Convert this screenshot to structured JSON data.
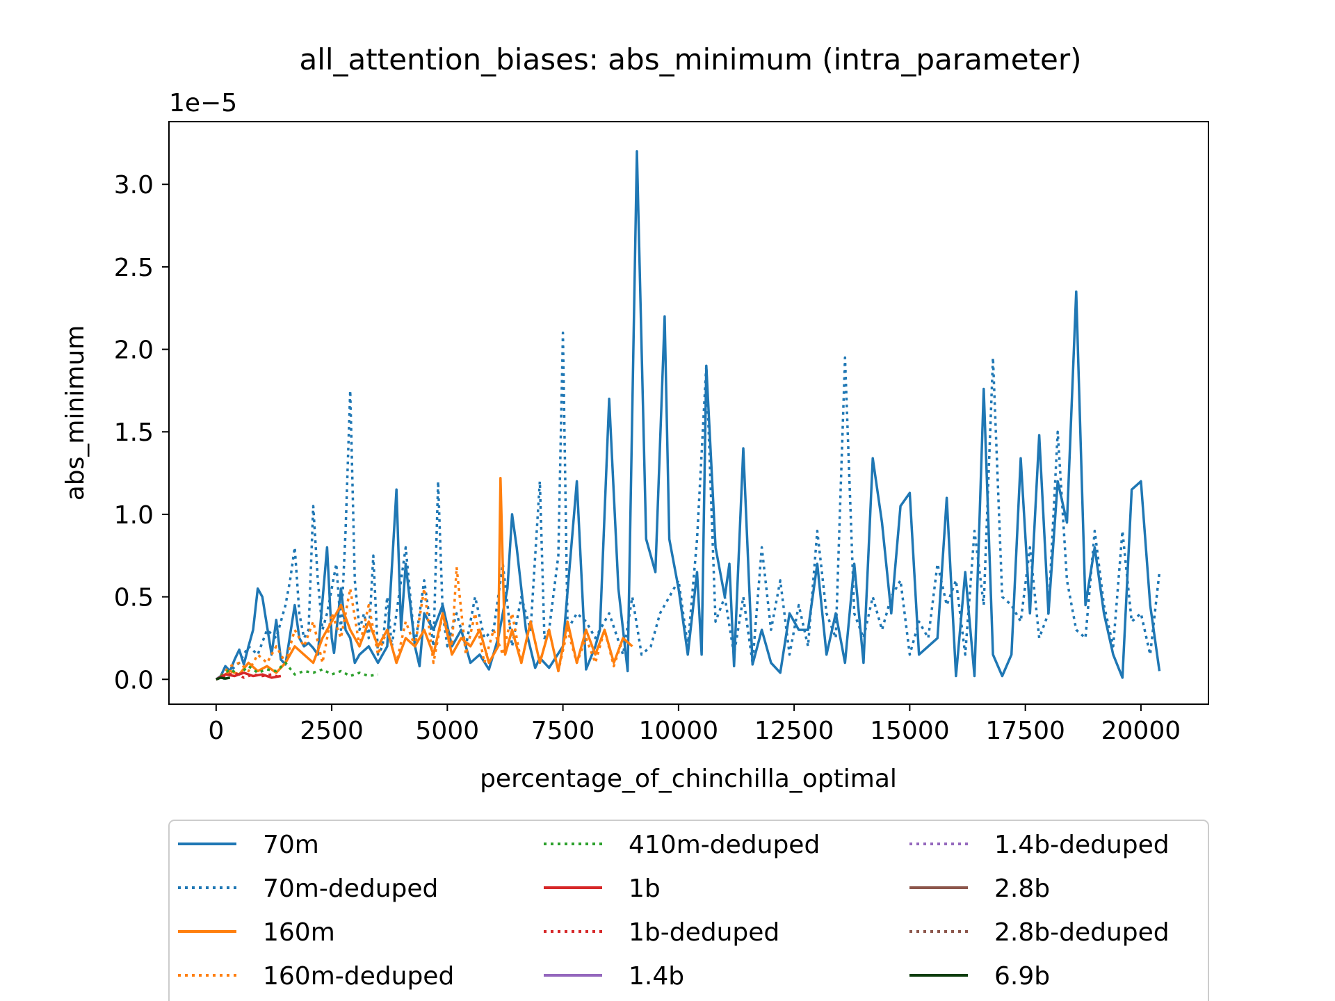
{
  "chart_data": {
    "type": "line",
    "title": "all_attention_biases: abs_minimum (intra_parameter)",
    "xlabel": "percentage_of_chinchilla_optimal",
    "ylabel": "abs_minimum",
    "y_offset_label": "1e−5",
    "xlim": [
      -1020,
      21460
    ],
    "ylim": [
      -1.505e-06,
      3.38e-05
    ],
    "x_ticks": [
      0,
      2500,
      5000,
      7500,
      10000,
      12500,
      15000,
      17500,
      20000
    ],
    "x_tick_labels": [
      "0",
      "2500",
      "5000",
      "7500",
      "10000",
      "12500",
      "15000",
      "17500",
      "20000"
    ],
    "y_ticks": [
      0,
      5e-06,
      1e-05,
      1.5e-05,
      2e-05,
      2.5e-05,
      3e-05
    ],
    "y_tick_labels": [
      "0.0",
      "0.5",
      "1.0",
      "1.5",
      "2.0",
      "2.5",
      "3.0"
    ],
    "grid": false,
    "legend_placement": "below plot, 3 columns",
    "series": [
      {
        "name": "70m",
        "color": "#1f77b4",
        "style": "solid",
        "x": [
          0,
          100,
          200,
          300,
          400,
          500,
          600,
          700,
          800,
          900,
          1000,
          1200,
          1300,
          1400,
          1500,
          1700,
          1800,
          1900,
          2000,
          2100,
          2200,
          2400,
          2500,
          2550,
          2700,
          2800,
          2900,
          3000,
          3100,
          3300,
          3500,
          3700,
          3900,
          4000,
          4100,
          4300,
          4400,
          4500,
          4700,
          4900,
          5100,
          5300,
          5500,
          5700,
          5900,
          6100,
          6300,
          6400,
          6500,
          6700,
          6900,
          7000,
          7200,
          7500,
          7800,
          8000,
          8200,
          8300,
          8500,
          8700,
          8900,
          9100,
          9300,
          9500,
          9700,
          9800,
          10000,
          10200,
          10400,
          10500,
          10600,
          10800,
          11000,
          11100,
          11200,
          11400,
          11600,
          11800,
          12000,
          12200,
          12400,
          12600,
          12800,
          13000,
          13200,
          13400,
          13600,
          13800,
          14000,
          14200,
          14400,
          14600,
          14800,
          15000,
          15200,
          15400,
          15600,
          15800,
          16000,
          16200,
          16400,
          16600,
          16800,
          17000,
          17200,
          17400,
          17600,
          17800,
          18000,
          18200,
          18400,
          18600,
          18800,
          19000,
          19200,
          19400,
          19600,
          19800,
          20000,
          20200,
          20400
        ],
        "y": [
          0,
          2e-07,
          8e-07,
          5e-07,
          1.2e-06,
          1.8e-06,
          9e-07,
          2e-06,
          3e-06,
          5.5e-06,
          5e-06,
          1.5e-06,
          3.6e-06,
          1.2e-06,
          9e-07,
          4.5e-06,
          2.5e-06,
          2e-06,
          2.2e-06,
          1.9e-06,
          1.5e-06,
          8e-06,
          2.5e-06,
          1.6e-06,
          5.5e-06,
          3e-06,
          2.5e-06,
          1e-06,
          1.5e-06,
          2e-06,
          1e-06,
          2e-06,
          1.15e-05,
          3e-06,
          7e-06,
          2e-06,
          8e-07,
          4e-06,
          3e-06,
          4.5e-06,
          2e-06,
          3e-06,
          1e-06,
          1.5e-06,
          6e-07,
          2.5e-06,
          5.5e-06,
          1e-05,
          8e-06,
          3e-06,
          7e-07,
          1.3e-06,
          7e-07,
          2e-06,
          1.2e-05,
          6e-07,
          2e-06,
          3e-06,
          1.7e-05,
          5.5e-06,
          5e-07,
          3.2e-05,
          8.5e-06,
          6.5e-06,
          2.2e-05,
          8.5e-06,
          5.5e-06,
          1.5e-06,
          6.5e-06,
          1.5e-06,
          1.9e-05,
          8e-06,
          5e-06,
          7e-06,
          8e-07,
          1.4e-05,
          9e-07,
          3e-06,
          1e-06,
          4e-07,
          4e-06,
          3e-06,
          3e-06,
          7e-06,
          1.5e-06,
          4e-06,
          1e-06,
          7e-06,
          1e-06,
          1.34e-05,
          9.5e-06,
          4e-06,
          1.05e-05,
          1.13e-05,
          1.5e-06,
          2e-06,
          2.5e-06,
          1.1e-05,
          2e-07,
          6.5e-06,
          2e-07,
          1.76e-05,
          1.5e-06,
          2e-07,
          1.5e-06,
          1.34e-05,
          4e-06,
          1.48e-05,
          4e-06,
          1.2e-05,
          9.5e-06,
          2.35e-05,
          4.5e-06,
          8e-06,
          4e-06,
          1.5e-06,
          1e-07,
          1.15e-05,
          1.2e-05,
          4.5e-06,
          5e-07
        ]
      },
      {
        "name": "70m-deduped",
        "color": "#1f77b4",
        "style": "dotted",
        "x": [
          150,
          300,
          500,
          700,
          900,
          1100,
          1300,
          1500,
          1600,
          1700,
          1800,
          1900,
          2000,
          2100,
          2200,
          2300,
          2400,
          2500,
          2600,
          2700,
          2800,
          2900,
          3000,
          3100,
          3200,
          3300,
          3400,
          3500,
          3600,
          3700,
          3800,
          3900,
          4100,
          4300,
          4500,
          4700,
          4800,
          4900,
          5000,
          5200,
          5400,
          5600,
          5800,
          6000,
          6200,
          6400,
          6600,
          6800,
          7000,
          7100,
          7200,
          7400,
          7500,
          7600,
          7800,
          8000,
          8200,
          8500,
          8800,
          9000,
          9200,
          9400,
          9600,
          10000,
          10200,
          10400,
          10600,
          10800,
          11000,
          11200,
          11400,
          11600,
          11800,
          12000,
          12200,
          12400,
          12600,
          12800,
          13000,
          13200,
          13400,
          13600,
          13800,
          14000,
          14200,
          14400,
          14600,
          14800,
          15000,
          15200,
          15400,
          15600,
          15800,
          16000,
          16200,
          16400,
          16600,
          16800,
          17000,
          17200,
          17400,
          17600,
          17800,
          18000,
          18200,
          18400,
          18600,
          18800,
          19000,
          19200,
          19400,
          19600,
          19800,
          20000,
          20200,
          20400
        ],
        "y": [
          0,
          5e-07,
          1e-06,
          2e-06,
          1.5e-06,
          3e-06,
          2.5e-06,
          4.5e-06,
          6e-06,
          8e-06,
          4e-06,
          2.5e-06,
          3e-06,
          1.05e-05,
          6e-06,
          3e-06,
          4e-06,
          5.5e-06,
          7e-06,
          3e-06,
          9e-06,
          1.75e-05,
          6e-06,
          3e-06,
          4e-06,
          2.5e-06,
          7.5e-06,
          1.5e-06,
          2e-06,
          5e-06,
          2e-06,
          4e-06,
          8e-06,
          2e-06,
          6e-06,
          2e-06,
          1.2e-05,
          4e-06,
          2e-06,
          4e-06,
          2e-06,
          5e-06,
          2.5e-06,
          3e-06,
          7e-06,
          2e-06,
          5e-06,
          3e-06,
          1.2e-05,
          2.5e-06,
          3e-06,
          7.5e-06,
          2.1e-05,
          3e-06,
          4e-06,
          3.5e-06,
          2.5e-06,
          4e-06,
          1.5e-06,
          5e-06,
          1.5e-06,
          2e-06,
          4e-06,
          6e-06,
          2e-06,
          8.5e-06,
          1.9e-05,
          3.5e-06,
          5e-06,
          1.5e-06,
          5e-06,
          1e-06,
          8e-06,
          3e-06,
          6e-06,
          1.5e-06,
          4.5e-06,
          2e-06,
          9e-06,
          4e-06,
          2.5e-06,
          1.95e-05,
          4e-06,
          2.5e-06,
          5e-06,
          3e-06,
          5e-06,
          6e-06,
          1.5e-06,
          3.5e-06,
          2.5e-06,
          7e-06,
          4.5e-06,
          6e-06,
          1.5e-06,
          9e-06,
          4.5e-06,
          1.95e-05,
          5e-06,
          4.5e-06,
          3.5e-06,
          8e-06,
          2.5e-06,
          4e-06,
          1.5e-05,
          6e-06,
          3e-06,
          2.5e-06,
          9e-06,
          4.5e-06,
          2e-06,
          9e-06,
          3.5e-06,
          4e-06,
          1.5e-06,
          6.5e-06
        ]
      },
      {
        "name": "160m",
        "color": "#ff7f0e",
        "style": "solid",
        "x": [
          150,
          300,
          500,
          700,
          900,
          1100,
          1300,
          1500,
          1700,
          1900,
          2100,
          2300,
          2500,
          2700,
          2900,
          3100,
          3300,
          3500,
          3700,
          3900,
          4100,
          4300,
          4500,
          4700,
          4900,
          5100,
          5300,
          5500,
          5700,
          5900,
          6100,
          6150,
          6250,
          6400,
          6600,
          6800,
          7000,
          7200,
          7400,
          7600,
          7800,
          8000,
          8200,
          8400,
          8600,
          8800,
          9000
        ],
        "y": [
          2e-07,
          5e-07,
          3e-07,
          1e-06,
          5e-07,
          8e-07,
          4e-07,
          1e-06,
          2e-06,
          1.5e-06,
          1e-06,
          2.5e-06,
          3.5e-06,
          4.5e-06,
          3e-06,
          2e-06,
          3.5e-06,
          2e-06,
          3e-06,
          1e-06,
          2.5e-06,
          2e-06,
          3e-06,
          1.5e-06,
          4e-06,
          1.5e-06,
          2.5e-06,
          2e-06,
          3e-06,
          1e-06,
          2e-06,
          1.22e-05,
          1.5e-06,
          3e-06,
          1e-06,
          3.5e-06,
          1e-06,
          3e-06,
          5e-07,
          3.5e-06,
          1e-06,
          3e-06,
          1.5e-06,
          3e-06,
          1e-06,
          2.5e-06,
          2e-06
        ]
      },
      {
        "name": "160m-deduped",
        "color": "#ff7f0e",
        "style": "dotted",
        "x": [
          100,
          300,
          500,
          700,
          900,
          1100,
          1300,
          1500,
          1700,
          1900,
          2100,
          2300,
          2500,
          2700,
          2900,
          3100,
          3300,
          3500,
          3700,
          3900,
          4100,
          4300,
          4500,
          4700,
          4900,
          5100,
          5200,
          5400,
          5600,
          5800,
          6000,
          6200,
          6400,
          6600,
          6800,
          7000,
          7200,
          7400,
          7600,
          7800,
          8000,
          8200,
          8400,
          8600,
          8800
        ],
        "y": [
          2e-07,
          8e-07,
          1e-06,
          5e-07,
          1.5e-06,
          1e-06,
          2e-06,
          1e-06,
          3e-06,
          2e-06,
          3.5e-06,
          1e-06,
          4e-06,
          2.5e-06,
          5.5e-06,
          2e-06,
          4.5e-06,
          1.5e-06,
          3e-06,
          1e-06,
          3.5e-06,
          2e-06,
          5.5e-06,
          1e-06,
          4e-06,
          2e-06,
          6.8e-06,
          1.5e-06,
          4e-06,
          1e-06,
          3e-06,
          1.5e-06,
          4e-06,
          1e-06,
          3.5e-06,
          1e-06,
          3e-06,
          5e-07,
          3e-06,
          1e-06,
          2.5e-06,
          1e-06,
          3e-06,
          8e-07,
          2.5e-06
        ]
      },
      {
        "name": "410m-deduped",
        "color": "#2ca02c",
        "style": "dotted",
        "x": [
          100,
          300,
          500,
          700,
          900,
          1100,
          1300,
          1500,
          1700,
          1900,
          2100,
          2300,
          2500,
          2700,
          2900,
          3100,
          3300,
          3500
        ],
        "y": [
          2e-07,
          6e-07,
          3e-07,
          8e-07,
          4e-07,
          6e-07,
          5e-07,
          1e-06,
          3e-07,
          5e-07,
          4e-07,
          6e-07,
          3e-07,
          5e-07,
          2e-07,
          4e-07,
          2e-07,
          3e-07
        ]
      },
      {
        "name": "1b",
        "color": "#d62728",
        "style": "solid",
        "x": [
          0,
          200,
          400,
          600,
          800,
          1000,
          1200,
          1400
        ],
        "y": [
          0,
          3e-07,
          2e-07,
          4e-07,
          2e-07,
          3e-07,
          1e-07,
          2e-07
        ]
      },
      {
        "name": "1b-deduped",
        "color": "#d62728",
        "style": "dotted",
        "x": [
          0,
          200,
          400,
          600,
          800,
          1000,
          1200,
          1400
        ],
        "y": [
          0,
          2e-07,
          4e-07,
          1e-07,
          3e-07,
          2e-07,
          3e-07,
          1e-07
        ]
      },
      {
        "name": "1.4b",
        "color": "#9467bd",
        "style": "solid",
        "x": [],
        "y": []
      },
      {
        "name": "1.4b-deduped",
        "color": "#9467bd",
        "style": "dotted",
        "x": [],
        "y": []
      },
      {
        "name": "2.8b",
        "color": "#8c564b",
        "style": "solid",
        "x": [],
        "y": []
      },
      {
        "name": "2.8b-deduped",
        "color": "#8c564b",
        "style": "dotted",
        "x": [],
        "y": []
      },
      {
        "name": "6.9b",
        "color": "#0b3d0b",
        "style": "solid",
        "x": [
          0,
          100,
          200,
          300
        ],
        "y": [
          0,
          1e-07,
          5e-08,
          1e-07
        ]
      }
    ]
  }
}
